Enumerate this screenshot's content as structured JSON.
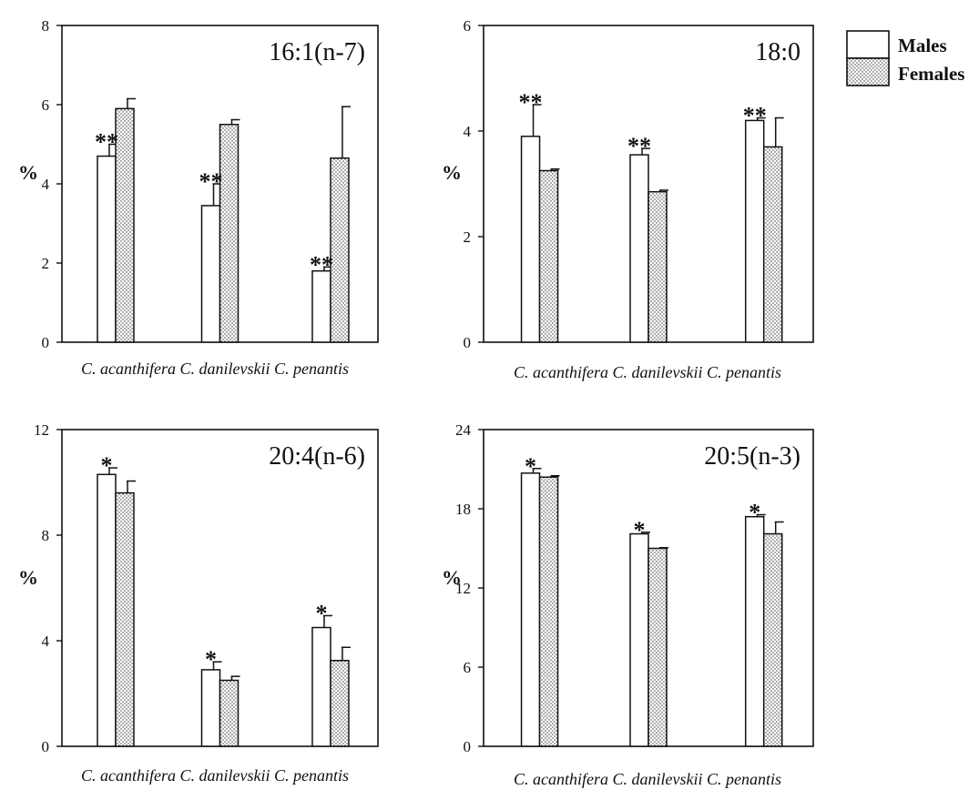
{
  "legend": [
    {
      "label": "Males",
      "pattern": "open"
    },
    {
      "label": "Females",
      "pattern": "stippled"
    }
  ],
  "chart_data": [
    {
      "type": "bar",
      "title": "16:1(n-7)",
      "ylabel": "%",
      "ylim": [
        0,
        8
      ],
      "yticks": [
        "0",
        "2",
        "4",
        "6",
        "8"
      ],
      "categories": [
        "C. acanthifera",
        "C. danilevskii",
        "C. penantis"
      ],
      "series": [
        {
          "name": "Males",
          "values": [
            4.7,
            3.45,
            1.8
          ],
          "errors": [
            0.3,
            0.55,
            0.1
          ]
        },
        {
          "name": "Females",
          "values": [
            5.9,
            5.5,
            4.65
          ],
          "errors": [
            0.25,
            0.12,
            1.3
          ]
        }
      ],
      "significance": [
        "**",
        "**",
        "**"
      ]
    },
    {
      "type": "bar",
      "title": "18:0",
      "ylabel": "%",
      "ylim": [
        0,
        6
      ],
      "yticks": [
        "0",
        "2",
        "4",
        "6"
      ],
      "categories": [
        "C. acanthifera",
        "C. danilevskii",
        "C. penantis"
      ],
      "series": [
        {
          "name": "Males",
          "values": [
            3.9,
            3.55,
            4.2
          ],
          "errors": [
            0.6,
            0.12,
            0.05
          ]
        },
        {
          "name": "Females",
          "values": [
            3.25,
            2.85,
            3.7
          ],
          "errors": [
            0.03,
            0.03,
            0.55
          ]
        }
      ],
      "significance": [
        "**",
        "**",
        "**"
      ]
    },
    {
      "type": "bar",
      "title": "20:4(n-6)",
      "ylabel": "%",
      "ylim": [
        0,
        12
      ],
      "yticks": [
        "0",
        "4",
        "8",
        "12"
      ],
      "categories": [
        "C. acanthifera",
        "C. danilevskii",
        "C. penantis"
      ],
      "series": [
        {
          "name": "Males",
          "values": [
            10.3,
            2.9,
            4.5
          ],
          "errors": [
            0.25,
            0.3,
            0.45
          ]
        },
        {
          "name": "Females",
          "values": [
            9.6,
            2.5,
            3.25
          ],
          "errors": [
            0.45,
            0.15,
            0.5
          ]
        }
      ],
      "significance": [
        "*",
        "*",
        "*"
      ]
    },
    {
      "type": "bar",
      "title": "20:5(n-3)",
      "ylabel": "%",
      "ylim": [
        0,
        24
      ],
      "yticks": [
        "0",
        "6",
        "12",
        "18",
        "24"
      ],
      "categories": [
        "C. acanthifera",
        "C. danilevskii",
        "C. penantis"
      ],
      "series": [
        {
          "name": "Males",
          "values": [
            20.7,
            16.1,
            17.4
          ],
          "errors": [
            0.35,
            0.12,
            0.15
          ]
        },
        {
          "name": "Females",
          "values": [
            20.4,
            15.0,
            16.1
          ],
          "errors": [
            0.1,
            0.05,
            0.9
          ]
        }
      ],
      "significance": [
        "*",
        "*",
        "*"
      ]
    }
  ]
}
